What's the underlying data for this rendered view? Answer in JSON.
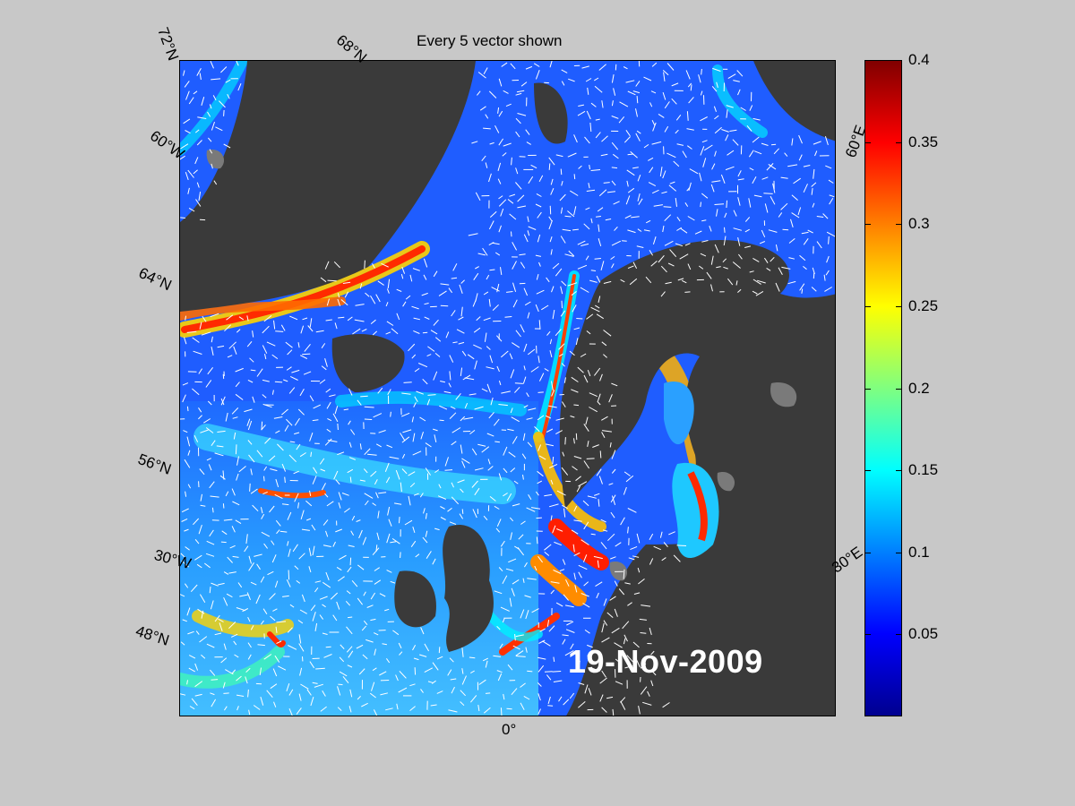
{
  "figure": {
    "title": "Every 5 vector shown",
    "date": "19-Nov-2009",
    "latitude_labels": [
      "72°N",
      "68°N",
      "64°N",
      "56°N",
      "48°N"
    ],
    "longitude_labels": [
      "60°W",
      "30°W",
      "0°",
      "30°E",
      "60°E"
    ],
    "colorbar": {
      "min": 0,
      "max": 0.4,
      "colormap": "jet",
      "tick_labels": [
        "0.4",
        "0.35",
        "0.3",
        "0.25",
        "0.2",
        "0.15",
        "0.1",
        "0.05"
      ],
      "tick_values": [
        0.4,
        0.35,
        0.3,
        0.25,
        0.2,
        0.15,
        0.1,
        0.05
      ]
    },
    "colors": {
      "land": "#3a3a3a",
      "ice": "#7a7a7a",
      "background": "#c8c8c8",
      "vectors": "#ffffff"
    }
  }
}
